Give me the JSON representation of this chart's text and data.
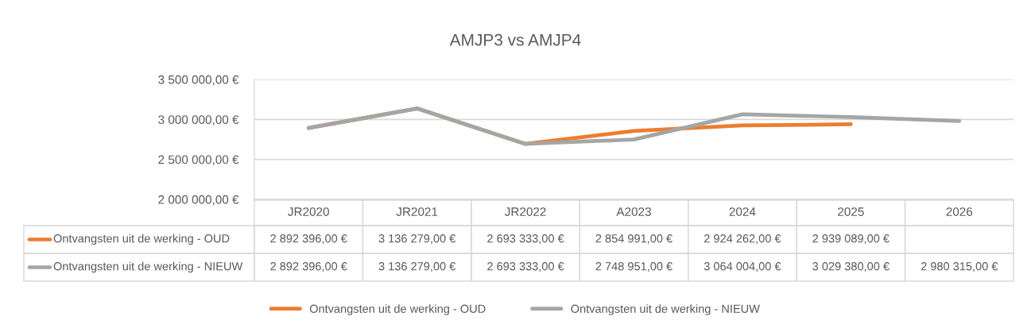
{
  "chart_data": {
    "type": "line",
    "title": "AMJP3 vs AMJP4",
    "categories": [
      "JR2020",
      "JR2021",
      "JR2022",
      "A2023",
      "2024",
      "2025",
      "2026"
    ],
    "series": [
      {
        "name": "Ontvangsten uit de werking - OUD",
        "color": "#ed7d31",
        "values": [
          2892396,
          3136279,
          2693333,
          2854991,
          2924262,
          2939089,
          null
        ],
        "value_labels": [
          "2 892 396,00 €",
          "3 136 279,00 €",
          "2 693 333,00 €",
          "2 854 991,00 €",
          "2 924 262,00 €",
          "2 939 089,00 €",
          null
        ]
      },
      {
        "name": "Ontvangsten uit de werking - NIEUW",
        "color": "#a5a5a5",
        "values": [
          2892396,
          3136279,
          2693333,
          2748951,
          3064004,
          3029380,
          2980315
        ],
        "value_labels": [
          "2 892 396,00 €",
          "3 136 279,00 €",
          "2 693 333,00 €",
          "2 748 951,00 €",
          "3 064 004,00 €",
          "3 029 380,00 €",
          "2 980 315,00 €"
        ]
      }
    ],
    "ylim": [
      2000000,
      3500000
    ],
    "yticks": [
      {
        "value": 2000000,
        "label": "2 000 000,00 €"
      },
      {
        "value": 2500000,
        "label": "2 500 000,00 €"
      },
      {
        "value": 3000000,
        "label": "3 000 000,00 €"
      },
      {
        "value": 3500000,
        "label": "3 500 000,00 €"
      }
    ],
    "grid": "y",
    "legend": "bottom",
    "marker": "none",
    "line_style": "solid"
  }
}
